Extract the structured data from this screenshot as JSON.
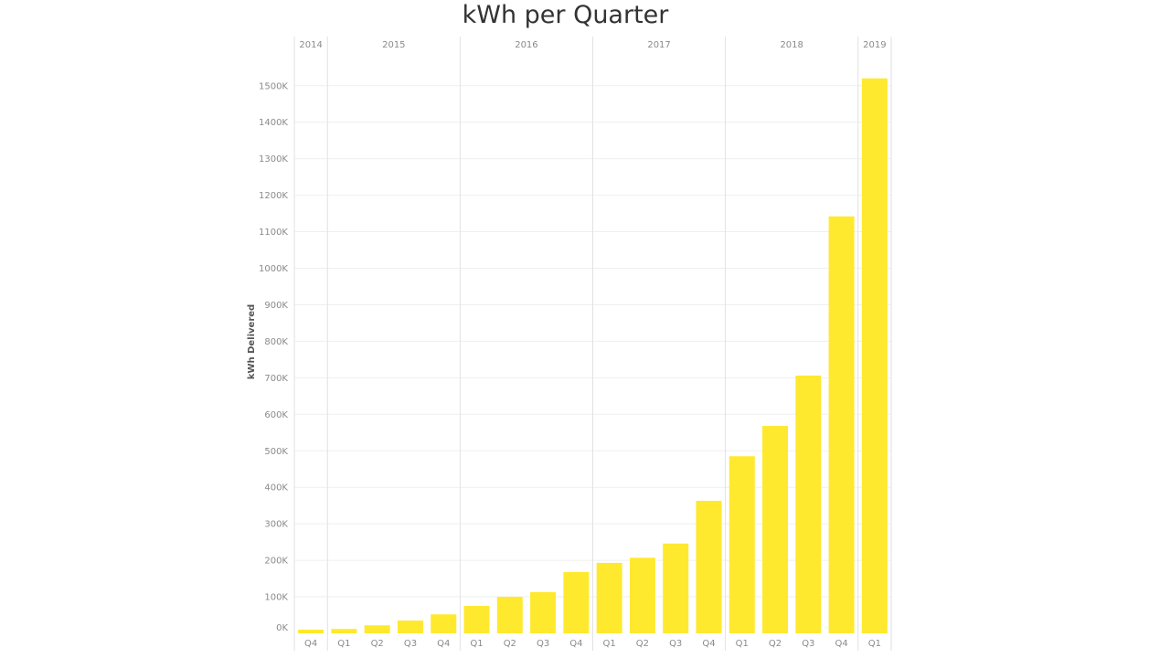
{
  "chart_data": {
    "type": "bar",
    "title": "kWh per Quarter",
    "ylabel": "kWh Delivered",
    "ylim": [
      0,
      1600000
    ],
    "y_ticks": [
      {
        "value": 0,
        "label": "0K"
      },
      {
        "value": 100000,
        "label": "100K"
      },
      {
        "value": 200000,
        "label": "200K"
      },
      {
        "value": 300000,
        "label": "300K"
      },
      {
        "value": 400000,
        "label": "400K"
      },
      {
        "value": 500000,
        "label": "500K"
      },
      {
        "value": 600000,
        "label": "600K"
      },
      {
        "value": 700000,
        "label": "700K"
      },
      {
        "value": 800000,
        "label": "800K"
      },
      {
        "value": 900000,
        "label": "900K"
      },
      {
        "value": 1000000,
        "label": "1000K"
      },
      {
        "value": 1100000,
        "label": "1100K"
      },
      {
        "value": 1200000,
        "label": "1200K"
      },
      {
        "value": 1300000,
        "label": "1300K"
      },
      {
        "value": 1400000,
        "label": "1400K"
      },
      {
        "value": 1500000,
        "label": "1500K"
      }
    ],
    "years": [
      {
        "label": "2014",
        "quarters": [
          "Q4"
        ]
      },
      {
        "label": "2015",
        "quarters": [
          "Q1",
          "Q2",
          "Q3",
          "Q4"
        ]
      },
      {
        "label": "2016",
        "quarters": [
          "Q1",
          "Q2",
          "Q3",
          "Q4"
        ]
      },
      {
        "label": "2017",
        "quarters": [
          "Q1",
          "Q2",
          "Q3",
          "Q4"
        ]
      },
      {
        "label": "2018",
        "quarters": [
          "Q1",
          "Q2",
          "Q3",
          "Q4"
        ]
      },
      {
        "label": "2019",
        "quarters": [
          "Q1"
        ]
      }
    ],
    "categories": [
      "2014 Q4",
      "2015 Q1",
      "2015 Q2",
      "2015 Q3",
      "2015 Q4",
      "2016 Q1",
      "2016 Q2",
      "2016 Q3",
      "2016 Q4",
      "2017 Q1",
      "2017 Q2",
      "2017 Q3",
      "2017 Q4",
      "2018 Q1",
      "2018 Q2",
      "2018 Q3",
      "2018 Q4",
      "2019 Q1"
    ],
    "values": [
      10000,
      12000,
      22000,
      35000,
      52000,
      75000,
      100000,
      113000,
      168000,
      193000,
      207000,
      246000,
      363000,
      485000,
      568000,
      706000,
      1142000,
      1520000
    ],
    "bar_color": "#ffe92e",
    "grid": true
  }
}
